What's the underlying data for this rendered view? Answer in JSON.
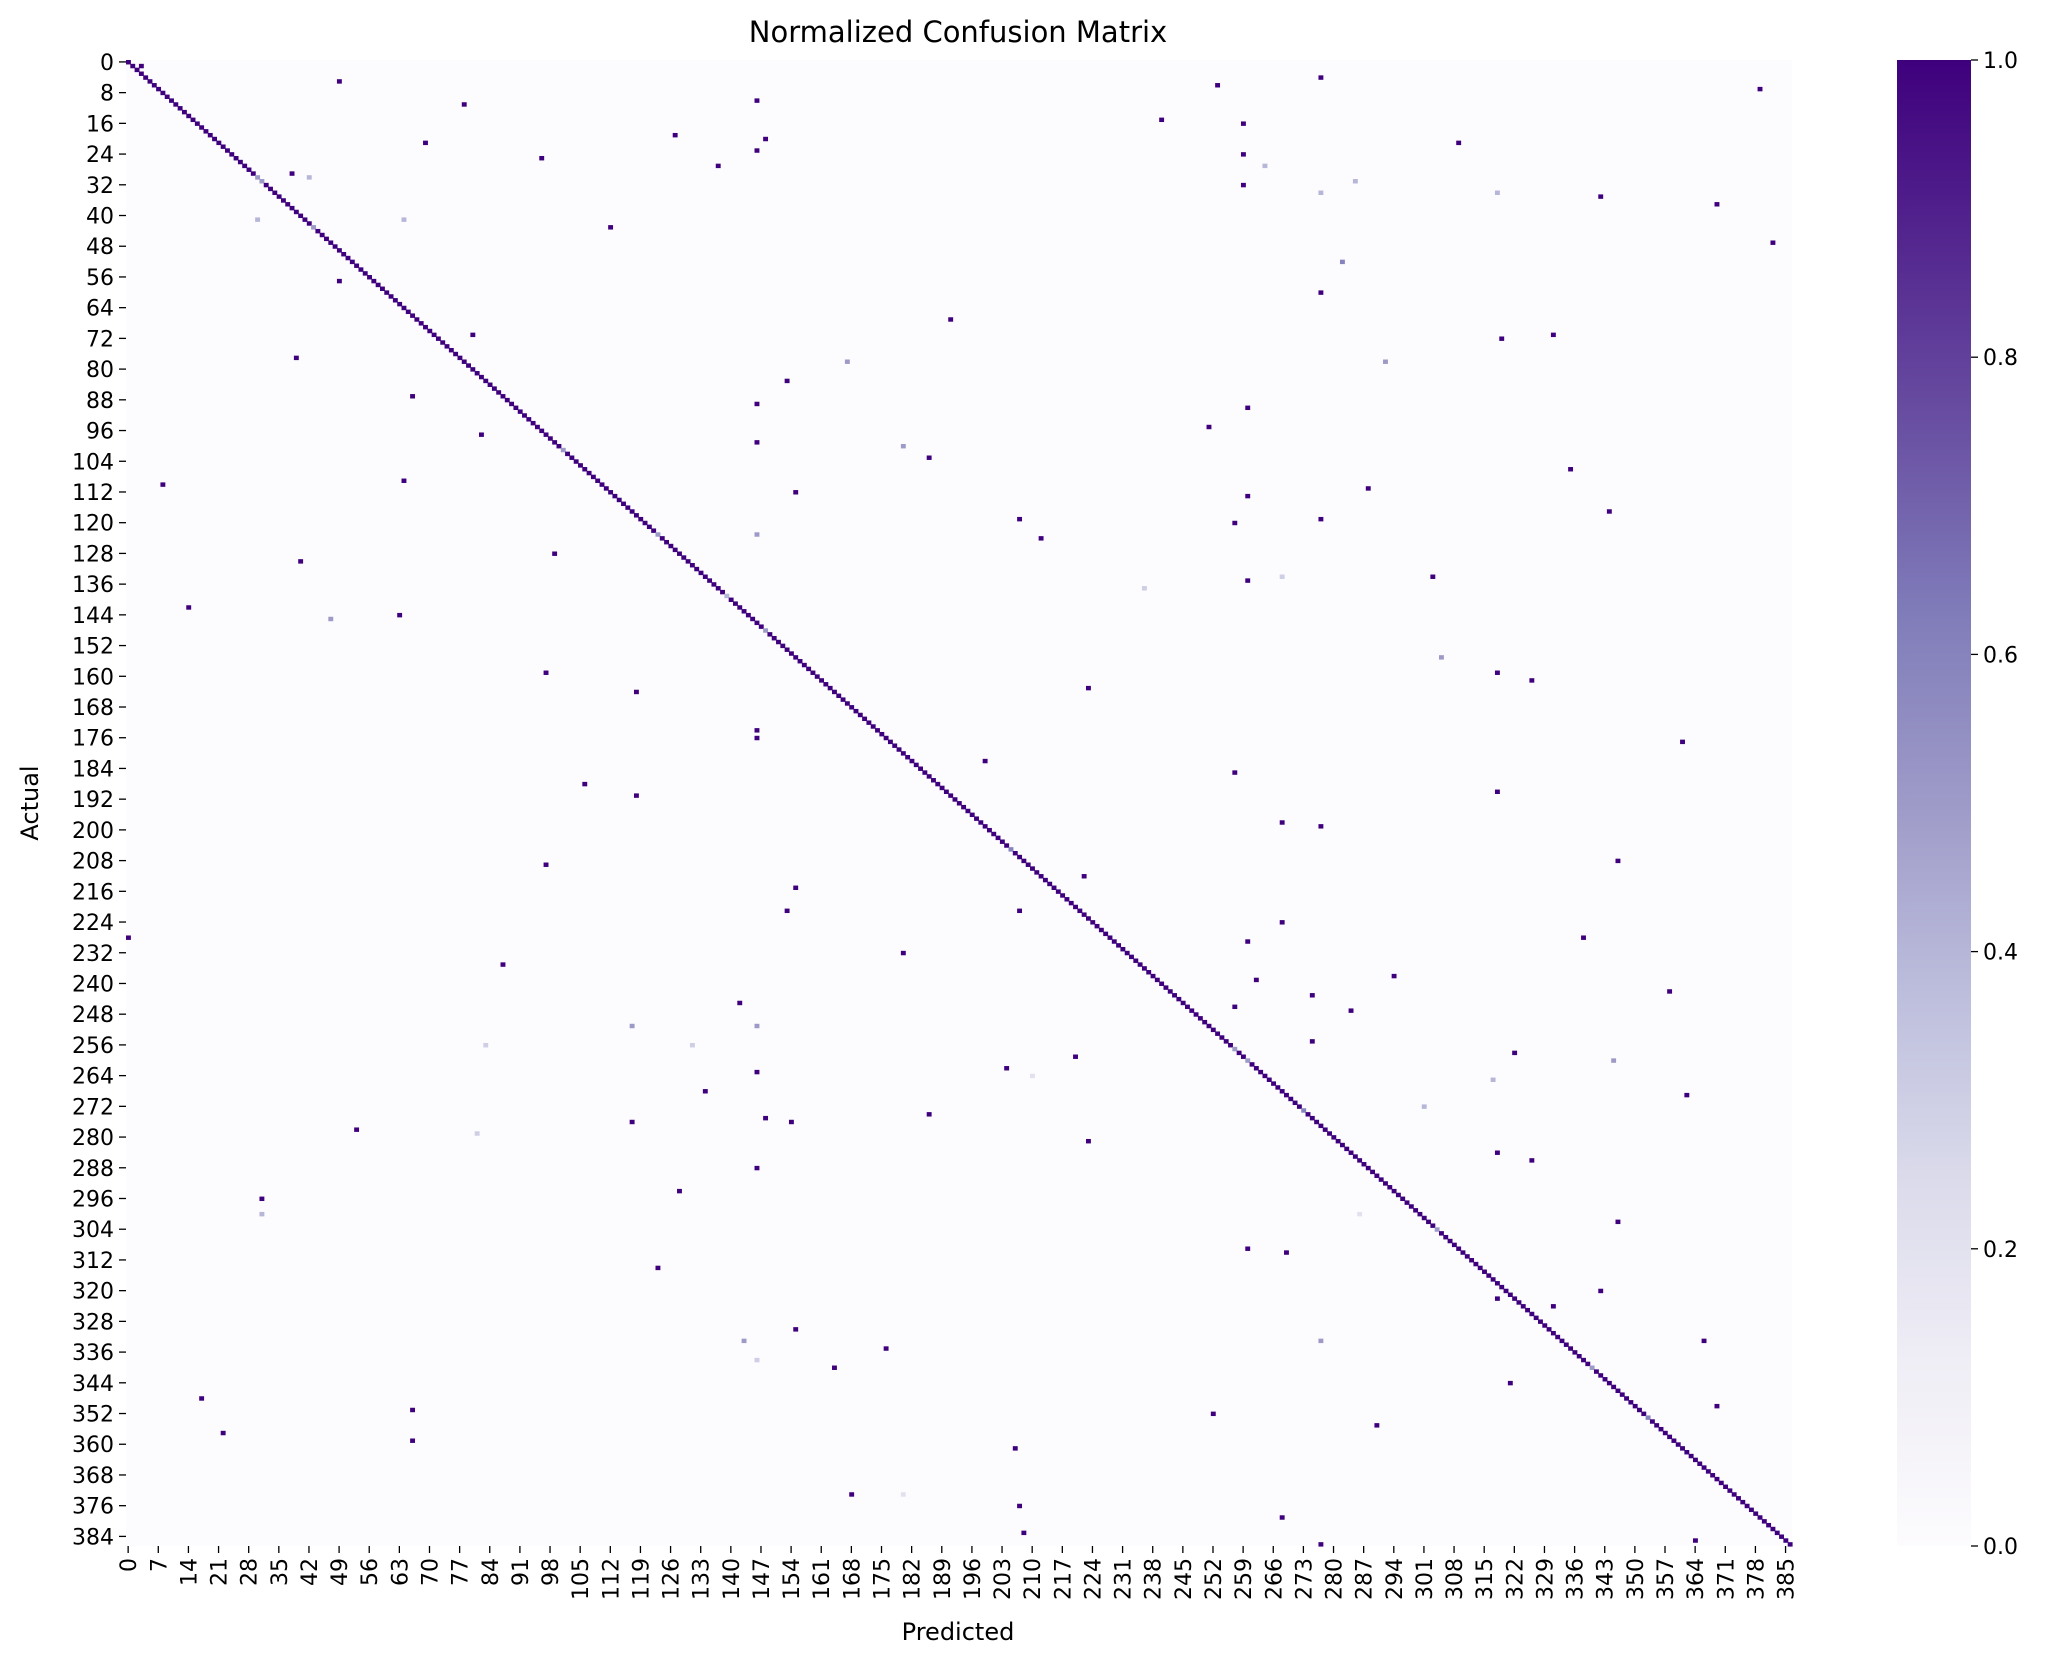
{
  "chart_data": {
    "type": "heatmap",
    "title": "Normalized Confusion Matrix",
    "xlabel": "Predicted",
    "ylabel": "Actual",
    "n_classes": 387,
    "x_tick_labels": [
      "0",
      "7",
      "14",
      "21",
      "28",
      "35",
      "42",
      "49",
      "56",
      "63",
      "70",
      "77",
      "84",
      "91",
      "98",
      "105",
      "112",
      "119",
      "126",
      "133",
      "140",
      "147",
      "154",
      "161",
      "168",
      "175",
      "182",
      "189",
      "196",
      "203",
      "210",
      "217",
      "224",
      "231",
      "238",
      "245",
      "252",
      "259",
      "266",
      "273",
      "280",
      "287",
      "294",
      "301",
      "308",
      "315",
      "322",
      "329",
      "336",
      "343",
      "350",
      "357",
      "364",
      "371",
      "378",
      "385"
    ],
    "y_tick_labels": [
      "0",
      "8",
      "16",
      "24",
      "32",
      "40",
      "48",
      "56",
      "64",
      "72",
      "80",
      "88",
      "96",
      "104",
      "112",
      "120",
      "128",
      "136",
      "144",
      "152",
      "160",
      "168",
      "176",
      "184",
      "192",
      "200",
      "208",
      "216",
      "224",
      "232",
      "240",
      "248",
      "256",
      "264",
      "272",
      "280",
      "288",
      "296",
      "304",
      "312",
      "320",
      "328",
      "336",
      "344",
      "352",
      "360",
      "368",
      "376",
      "384"
    ],
    "value_range": [
      0,
      1
    ],
    "colormap": "Purples",
    "colorbar_ticks": [
      "0.0",
      "0.2",
      "0.4",
      "0.6",
      "0.8",
      "1.0"
    ],
    "diagonal_value": 1.0,
    "notable_off_diagonal": [
      {
        "actual": 1,
        "predicted": 3,
        "value": 1.0
      },
      {
        "actual": 5,
        "predicted": 49,
        "value": 1.0
      },
      {
        "actual": 6,
        "predicted": 253,
        "value": 1.0
      },
      {
        "actual": 4,
        "predicted": 277,
        "value": 1.0
      },
      {
        "actual": 7,
        "predicted": 379,
        "value": 1.0
      },
      {
        "actual": 11,
        "predicted": 78,
        "value": 1.0
      },
      {
        "actual": 10,
        "predicted": 146,
        "value": 1.0
      },
      {
        "actual": 15,
        "predicted": 240,
        "value": 1.0
      },
      {
        "actual": 16,
        "predicted": 259,
        "value": 1.0
      },
      {
        "actual": 19,
        "predicted": 127,
        "value": 1.0
      },
      {
        "actual": 20,
        "predicted": 148,
        "value": 1.0
      },
      {
        "actual": 21,
        "predicted": 69,
        "value": 1.0
      },
      {
        "actual": 21,
        "predicted": 309,
        "value": 1.0
      },
      {
        "actual": 23,
        "predicted": 146,
        "value": 1.0
      },
      {
        "actual": 24,
        "predicted": 259,
        "value": 1.0
      },
      {
        "actual": 25,
        "predicted": 96,
        "value": 1.0
      },
      {
        "actual": 27,
        "predicted": 137,
        "value": 1.0
      },
      {
        "actual": 27,
        "predicted": 264,
        "value": 0.4
      },
      {
        "actual": 29,
        "predicted": 38,
        "value": 1.0
      },
      {
        "actual": 30,
        "predicted": 42,
        "value": 0.4
      },
      {
        "actual": 31,
        "predicted": 285,
        "value": 0.4
      },
      {
        "actual": 32,
        "predicted": 259,
        "value": 1.0
      },
      {
        "actual": 34,
        "predicted": 277,
        "value": 0.4
      },
      {
        "actual": 34,
        "predicted": 318,
        "value": 0.4
      },
      {
        "actual": 35,
        "predicted": 342,
        "value": 1.0
      },
      {
        "actual": 37,
        "predicted": 369,
        "value": 1.0
      },
      {
        "actual": 41,
        "predicted": 30,
        "value": 0.4
      },
      {
        "actual": 41,
        "predicted": 64,
        "value": 0.4
      },
      {
        "actual": 43,
        "predicted": 112,
        "value": 1.0
      },
      {
        "actual": 47,
        "predicted": 382,
        "value": 1.0
      },
      {
        "actual": 52,
        "predicted": 282,
        "value": 0.6
      },
      {
        "actual": 57,
        "predicted": 49,
        "value": 1.0
      },
      {
        "actual": 60,
        "predicted": 277,
        "value": 1.0
      },
      {
        "actual": 67,
        "predicted": 191,
        "value": 1.0
      },
      {
        "actual": 71,
        "predicted": 80,
        "value": 1.0
      },
      {
        "actual": 71,
        "predicted": 331,
        "value": 1.0
      },
      {
        "actual": 72,
        "predicted": 319,
        "value": 1.0
      },
      {
        "actual": 77,
        "predicted": 39,
        "value": 1.0
      },
      {
        "actual": 78,
        "predicted": 167,
        "value": 0.5
      },
      {
        "actual": 78,
        "predicted": 292,
        "value": 0.5
      },
      {
        "actual": 83,
        "predicted": 153,
        "value": 1.0
      },
      {
        "actual": 87,
        "predicted": 66,
        "value": 1.0
      },
      {
        "actual": 89,
        "predicted": 146,
        "value": 1.0
      },
      {
        "actual": 90,
        "predicted": 260,
        "value": 1.0
      },
      {
        "actual": 95,
        "predicted": 251,
        "value": 1.0
      },
      {
        "actual": 97,
        "predicted": 82,
        "value": 1.0
      },
      {
        "actual": 99,
        "predicted": 146,
        "value": 1.0
      },
      {
        "actual": 100,
        "predicted": 180,
        "value": 0.5
      },
      {
        "actual": 103,
        "predicted": 186,
        "value": 1.0
      },
      {
        "actual": 106,
        "predicted": 335,
        "value": 1.0
      },
      {
        "actual": 109,
        "predicted": 64,
        "value": 1.0
      },
      {
        "actual": 110,
        "predicted": 8,
        "value": 1.0
      },
      {
        "actual": 112,
        "predicted": 155,
        "value": 1.0
      },
      {
        "actual": 111,
        "predicted": 288,
        "value": 1.0
      },
      {
        "actual": 113,
        "predicted": 260,
        "value": 1.0
      },
      {
        "actual": 117,
        "predicted": 344,
        "value": 1.0
      },
      {
        "actual": 119,
        "predicted": 207,
        "value": 1.0
      },
      {
        "actual": 119,
        "predicted": 277,
        "value": 1.0
      },
      {
        "actual": 120,
        "predicted": 257,
        "value": 1.0
      },
      {
        "actual": 123,
        "predicted": 146,
        "value": 0.5
      },
      {
        "actual": 124,
        "predicted": 212,
        "value": 1.0
      },
      {
        "actual": 128,
        "predicted": 99,
        "value": 1.0
      },
      {
        "actual": 130,
        "predicted": 40,
        "value": 1.0
      },
      {
        "actual": 134,
        "predicted": 303,
        "value": 1.0
      },
      {
        "actual": 135,
        "predicted": 260,
        "value": 1.0
      },
      {
        "actual": 134,
        "predicted": 268,
        "value": 0.3
      },
      {
        "actual": 137,
        "predicted": 236,
        "value": 0.3
      },
      {
        "actual": 142,
        "predicted": 14,
        "value": 1.0
      },
      {
        "actual": 144,
        "predicted": 63,
        "value": 1.0
      },
      {
        "actual": 145,
        "predicted": 47,
        "value": 0.5
      },
      {
        "actual": 155,
        "predicted": 305,
        "value": 0.5
      },
      {
        "actual": 159,
        "predicted": 97,
        "value": 1.0
      },
      {
        "actual": 159,
        "predicted": 318,
        "value": 1.0
      },
      {
        "actual": 161,
        "predicted": 326,
        "value": 1.0
      },
      {
        "actual": 164,
        "predicted": 118,
        "value": 1.0
      },
      {
        "actual": 163,
        "predicted": 223,
        "value": 1.0
      },
      {
        "actual": 174,
        "predicted": 146,
        "value": 1.0
      },
      {
        "actual": 176,
        "predicted": 146,
        "value": 1.0
      },
      {
        "actual": 177,
        "predicted": 361,
        "value": 1.0
      },
      {
        "actual": 182,
        "predicted": 199,
        "value": 1.0
      },
      {
        "actual": 185,
        "predicted": 257,
        "value": 1.0
      },
      {
        "actual": 188,
        "predicted": 106,
        "value": 1.0
      },
      {
        "actual": 191,
        "predicted": 118,
        "value": 1.0
      },
      {
        "actual": 190,
        "predicted": 318,
        "value": 1.0
      },
      {
        "actual": 198,
        "predicted": 268,
        "value": 1.0
      },
      {
        "actual": 199,
        "predicted": 277,
        "value": 1.0
      },
      {
        "actual": 209,
        "predicted": 97,
        "value": 1.0
      },
      {
        "actual": 208,
        "predicted": 346,
        "value": 1.0
      },
      {
        "actual": 212,
        "predicted": 222,
        "value": 1.0
      },
      {
        "actual": 215,
        "predicted": 155,
        "value": 1.0
      },
      {
        "actual": 221,
        "predicted": 153,
        "value": 1.0
      },
      {
        "actual": 221,
        "predicted": 207,
        "value": 1.0
      },
      {
        "actual": 224,
        "predicted": 268,
        "value": 1.0
      },
      {
        "actual": 228,
        "predicted": 0,
        "value": 1.0
      },
      {
        "actual": 229,
        "predicted": 260,
        "value": 1.0
      },
      {
        "actual": 228,
        "predicted": 338,
        "value": 1.0
      },
      {
        "actual": 232,
        "predicted": 180,
        "value": 1.0
      },
      {
        "actual": 235,
        "predicted": 87,
        "value": 1.0
      },
      {
        "actual": 239,
        "predicted": 262,
        "value": 1.0
      },
      {
        "actual": 238,
        "predicted": 294,
        "value": 1.0
      },
      {
        "actual": 242,
        "predicted": 358,
        "value": 1.0
      },
      {
        "actual": 243,
        "predicted": 275,
        "value": 1.0
      },
      {
        "actual": 245,
        "predicted": 142,
        "value": 1.0
      },
      {
        "actual": 246,
        "predicted": 257,
        "value": 1.0
      },
      {
        "actual": 247,
        "predicted": 284,
        "value": 1.0
      },
      {
        "actual": 251,
        "predicted": 117,
        "value": 0.5
      },
      {
        "actual": 251,
        "predicted": 146,
        "value": 0.5
      },
      {
        "actual": 255,
        "predicted": 275,
        "value": 1.0
      },
      {
        "actual": 256,
        "predicted": 83,
        "value": 0.3
      },
      {
        "actual": 256,
        "predicted": 131,
        "value": 0.3
      },
      {
        "actual": 258,
        "predicted": 322,
        "value": 1.0
      },
      {
        "actual": 259,
        "predicted": 220,
        "value": 1.0
      },
      {
        "actual": 260,
        "predicted": 345,
        "value": 0.5
      },
      {
        "actual": 262,
        "predicted": 204,
        "value": 1.0
      },
      {
        "actual": 263,
        "predicted": 146,
        "value": 1.0
      },
      {
        "actual": 264,
        "predicted": 210,
        "value": 0.2
      },
      {
        "actual": 265,
        "predicted": 317,
        "value": 0.4
      },
      {
        "actual": 268,
        "predicted": 134,
        "value": 1.0
      },
      {
        "actual": 269,
        "predicted": 362,
        "value": 1.0
      },
      {
        "actual": 272,
        "predicted": 301,
        "value": 0.4
      },
      {
        "actual": 275,
        "predicted": 148,
        "value": 1.0
      },
      {
        "actual": 274,
        "predicted": 186,
        "value": 1.0
      },
      {
        "actual": 276,
        "predicted": 117,
        "value": 1.0
      },
      {
        "actual": 276,
        "predicted": 154,
        "value": 1.0
      },
      {
        "actual": 278,
        "predicted": 53,
        "value": 1.0
      },
      {
        "actual": 279,
        "predicted": 81,
        "value": 0.3
      },
      {
        "actual": 281,
        "predicted": 223,
        "value": 1.0
      },
      {
        "actual": 284,
        "predicted": 318,
        "value": 1.0
      },
      {
        "actual": 286,
        "predicted": 326,
        "value": 1.0
      },
      {
        "actual": 288,
        "predicted": 146,
        "value": 1.0
      },
      {
        "actual": 294,
        "predicted": 128,
        "value": 1.0
      },
      {
        "actual": 296,
        "predicted": 31,
        "value": 1.0
      },
      {
        "actual": 300,
        "predicted": 31,
        "value": 0.4
      },
      {
        "actual": 300,
        "predicted": 286,
        "value": 0.2
      },
      {
        "actual": 302,
        "predicted": 346,
        "value": 1.0
      },
      {
        "actual": 309,
        "predicted": 260,
        "value": 1.0
      },
      {
        "actual": 310,
        "predicted": 269,
        "value": 1.0
      },
      {
        "actual": 314,
        "predicted": 123,
        "value": 1.0
      },
      {
        "actual": 320,
        "predicted": 342,
        "value": 1.0
      },
      {
        "actual": 322,
        "predicted": 318,
        "value": 1.0
      },
      {
        "actual": 324,
        "predicted": 331,
        "value": 1.0
      },
      {
        "actual": 330,
        "predicted": 155,
        "value": 1.0
      },
      {
        "actual": 333,
        "predicted": 143,
        "value": 0.5
      },
      {
        "actual": 333,
        "predicted": 277,
        "value": 0.5
      },
      {
        "actual": 333,
        "predicted": 366,
        "value": 1.0
      },
      {
        "actual": 335,
        "predicted": 176,
        "value": 1.0
      },
      {
        "actual": 338,
        "predicted": 146,
        "value": 0.3
      },
      {
        "actual": 340,
        "predicted": 164,
        "value": 1.0
      },
      {
        "actual": 344,
        "predicted": 321,
        "value": 1.0
      },
      {
        "actual": 348,
        "predicted": 17,
        "value": 1.0
      },
      {
        "actual": 351,
        "predicted": 66,
        "value": 1.0
      },
      {
        "actual": 350,
        "predicted": 369,
        "value": 1.0
      },
      {
        "actual": 352,
        "predicted": 252,
        "value": 1.0
      },
      {
        "actual": 355,
        "predicted": 290,
        "value": 1.0
      },
      {
        "actual": 357,
        "predicted": 22,
        "value": 1.0
      },
      {
        "actual": 359,
        "predicted": 66,
        "value": 1.0
      },
      {
        "actual": 361,
        "predicted": 206,
        "value": 1.0
      },
      {
        "actual": 373,
        "predicted": 168,
        "value": 1.0
      },
      {
        "actual": 373,
        "predicted": 180,
        "value": 0.2
      },
      {
        "actual": 376,
        "predicted": 207,
        "value": 1.0
      },
      {
        "actual": 379,
        "predicted": 268,
        "value": 1.0
      },
      {
        "actual": 383,
        "predicted": 208,
        "value": 1.0
      },
      {
        "actual": 386,
        "predicted": 277,
        "value": 1.0
      },
      {
        "actual": 385,
        "predicted": 364,
        "value": 1.0
      }
    ],
    "partial_diagonal": [
      {
        "class": 30,
        "value": 0.5
      },
      {
        "class": 31,
        "value": 0.5
      },
      {
        "class": 43,
        "value": 0.5
      },
      {
        "class": 101,
        "value": 0.5
      },
      {
        "class": 123,
        "value": 0.5
      },
      {
        "class": 139,
        "value": 0.4
      },
      {
        "class": 148,
        "value": 0.5
      },
      {
        "class": 205,
        "value": 0.6
      },
      {
        "class": 257,
        "value": 0.5
      },
      {
        "class": 260,
        "value": 0.5
      },
      {
        "class": 273,
        "value": 0.6
      },
      {
        "class": 304,
        "value": 0.5
      },
      {
        "class": 340,
        "value": 0.5
      },
      {
        "class": 353,
        "value": 0.6
      }
    ],
    "colors": {
      "min": "#fcfbfd",
      "max": "#3f007d"
    }
  }
}
